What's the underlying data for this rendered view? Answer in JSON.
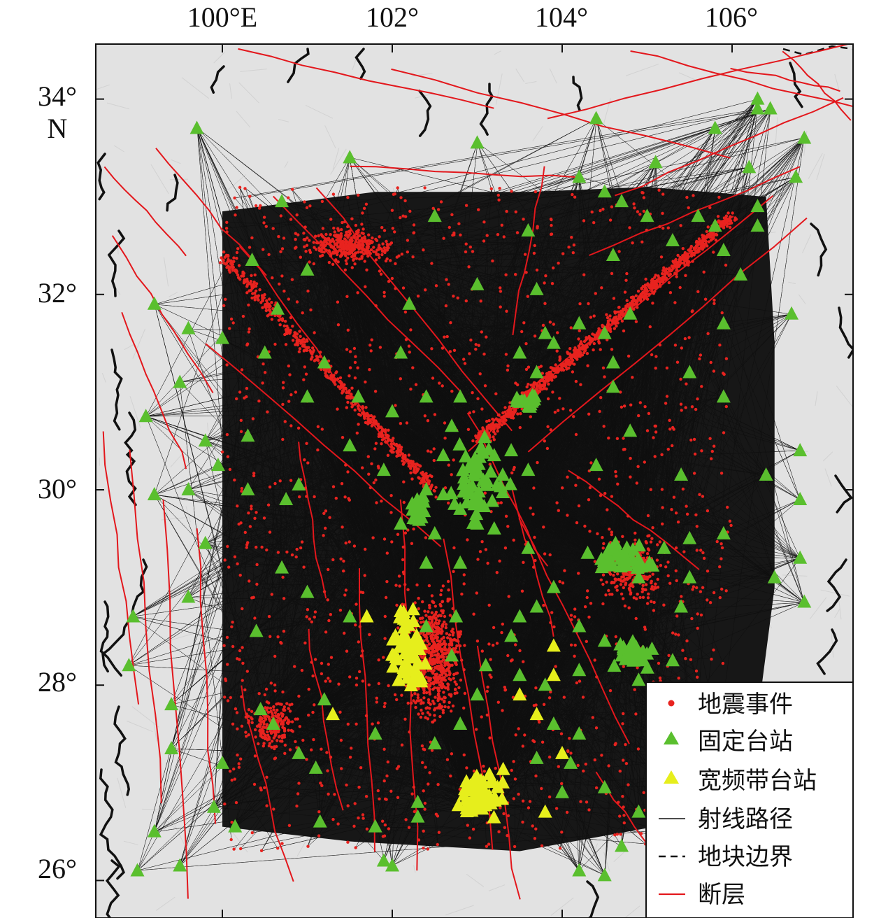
{
  "map": {
    "lon_range": [
      98.5,
      107.5
    ],
    "lat_range": [
      25.7,
      34.5
    ],
    "lon_ticks": [
      {
        "value": 100,
        "label": "100°E"
      },
      {
        "value": 102,
        "label": "102°"
      },
      {
        "value": 104,
        "label": "104°"
      },
      {
        "value": 106,
        "label": "106°"
      }
    ],
    "lat_ticks": [
      {
        "value": 34,
        "label": "34°"
      },
      {
        "value": 32,
        "label": "32°"
      },
      {
        "value": 30,
        "label": "30°"
      },
      {
        "value": 28,
        "label": "28°"
      },
      {
        "value": 26,
        "label": "26°"
      }
    ],
    "lat_axis_unit": "N",
    "colors": {
      "background": "#e2e2e2",
      "ray": "#111111",
      "event": "#e8231f",
      "fixed_station": "#5abf2e",
      "broadband_station": "#e6ee1c",
      "fault": "#e3171c",
      "block_boundary": "#111111"
    }
  },
  "legend": {
    "items": [
      {
        "label": "地震事件",
        "symbol": "dot"
      },
      {
        "label": "固定台站",
        "symbol": "green-triangle"
      },
      {
        "label": "宽频带台站",
        "symbol": "yellow-triangle"
      },
      {
        "label": "射线路径",
        "symbol": "thin-line"
      },
      {
        "label": "地块边界",
        "symbol": "dashed-line"
      },
      {
        "label": "断层",
        "symbol": "red-line"
      }
    ]
  }
}
